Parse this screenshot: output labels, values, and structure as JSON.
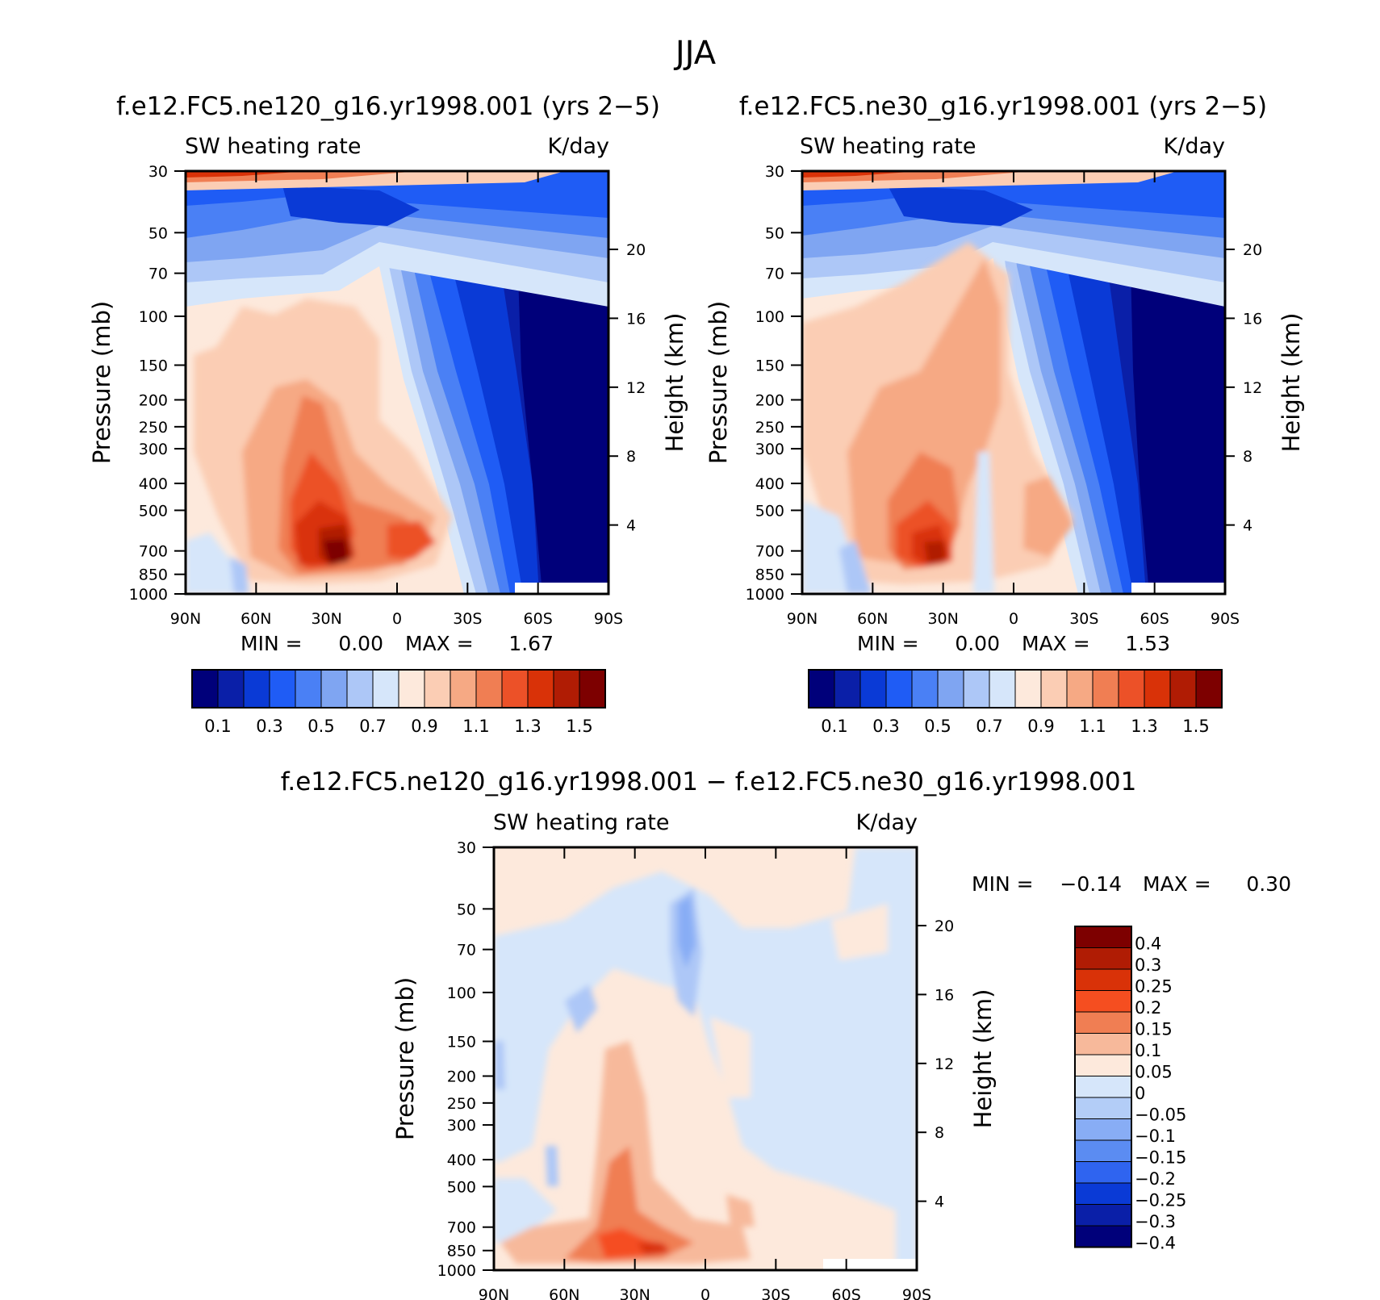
{
  "figure_title": "JJA",
  "chart_data": [
    {
      "type": "heatmap",
      "title": "f.e12.FC5.ne120_g16.yr1998.001 (yrs 2−5)",
      "left_string": "SW heating rate",
      "right_string": "K/day",
      "ylabel": "Pressure (mb)",
      "ylabel_right": "Height (km)",
      "x_tick_labels": [
        "90N",
        "60N",
        "30N",
        "0",
        "30S",
        "60S",
        "90S"
      ],
      "y_tick_labels": [
        "30",
        "50",
        "70",
        "100",
        "150",
        "200",
        "250",
        "300",
        "400",
        "500",
        "700",
        "850",
        "1000"
      ],
      "y_levels": [
        30,
        50,
        70,
        100,
        150,
        200,
        250,
        300,
        400,
        500,
        700,
        850,
        1000
      ],
      "height_ticks": [
        20,
        16,
        12,
        8,
        4
      ],
      "min_label": "MIN =",
      "min_value": "0.00",
      "max_label": "MAX =",
      "max_value": "1.67",
      "colorbar_labels": [
        "0.1",
        "0.3",
        "0.5",
        "0.7",
        "0.9",
        "1.1",
        "1.3",
        "1.5"
      ]
    },
    {
      "type": "heatmap",
      "title": "f.e12.FC5.ne30_g16.yr1998.001 (yrs 2−5)",
      "left_string": "SW heating rate",
      "right_string": "K/day",
      "ylabel": "Pressure (mb)",
      "ylabel_right": "Height (km)",
      "x_tick_labels": [
        "90N",
        "60N",
        "30N",
        "0",
        "30S",
        "60S",
        "90S"
      ],
      "y_tick_labels": [
        "30",
        "50",
        "70",
        "100",
        "150",
        "200",
        "250",
        "300",
        "400",
        "500",
        "700",
        "850",
        "1000"
      ],
      "y_levels": [
        30,
        50,
        70,
        100,
        150,
        200,
        250,
        300,
        400,
        500,
        700,
        850,
        1000
      ],
      "height_ticks": [
        20,
        16,
        12,
        8,
        4
      ],
      "min_label": "MIN =",
      "min_value": "0.00",
      "max_label": "MAX =",
      "max_value": "1.53",
      "colorbar_labels": [
        "0.1",
        "0.3",
        "0.5",
        "0.7",
        "0.9",
        "1.1",
        "1.3",
        "1.5"
      ]
    },
    {
      "type": "heatmap",
      "title": "f.e12.FC5.ne120_g16.yr1998.001 − f.e12.FC5.ne30_g16.yr1998.001",
      "left_string": "SW heating rate",
      "right_string": "K/day",
      "ylabel": "Pressure (mb)",
      "ylabel_right": "Height (km)",
      "x_tick_labels": [
        "90N",
        "60N",
        "30N",
        "0",
        "30S",
        "60S",
        "90S"
      ],
      "y_tick_labels": [
        "30",
        "50",
        "70",
        "100",
        "150",
        "200",
        "250",
        "300",
        "400",
        "500",
        "700",
        "850",
        "1000"
      ],
      "y_levels": [
        30,
        50,
        70,
        100,
        150,
        200,
        250,
        300,
        400,
        500,
        700,
        850,
        1000
      ],
      "height_ticks": [
        20,
        16,
        12,
        8,
        4
      ],
      "min_label": "MIN =",
      "min_value": "−0.14",
      "max_label": "MAX =",
      "max_value": "0.30",
      "colorbar_labels": [
        "0.4",
        "0.3",
        "0.25",
        "0.2",
        "0.15",
        "0.1",
        "0.05",
        "0",
        "−0.05",
        "−0.1",
        "−0.15",
        "−0.2",
        "−0.25",
        "−0.3",
        "−0.4"
      ]
    }
  ],
  "colors": {
    "abs_scale": [
      "#00007a",
      "#0a1fa8",
      "#0a3ad6",
      "#1f5cf5",
      "#4a80f5",
      "#7fa5f2",
      "#adc7f7",
      "#d6e6fa",
      "#fde9dc",
      "#fbcdb4",
      "#f6a984",
      "#f07e53",
      "#ec5128",
      "#d93208",
      "#b01c04",
      "#7d0000"
    ],
    "diff_scale": [
      "#7d0000",
      "#b01c04",
      "#d93208",
      "#f54e20",
      "#f07e53",
      "#f7b99b",
      "#fde9dc",
      "#d6e6fa",
      "#b3cdf7",
      "#88adf5",
      "#5b8cf2",
      "#2f64f0",
      "#0a3ad6",
      "#0a1fa8",
      "#00007a"
    ]
  }
}
